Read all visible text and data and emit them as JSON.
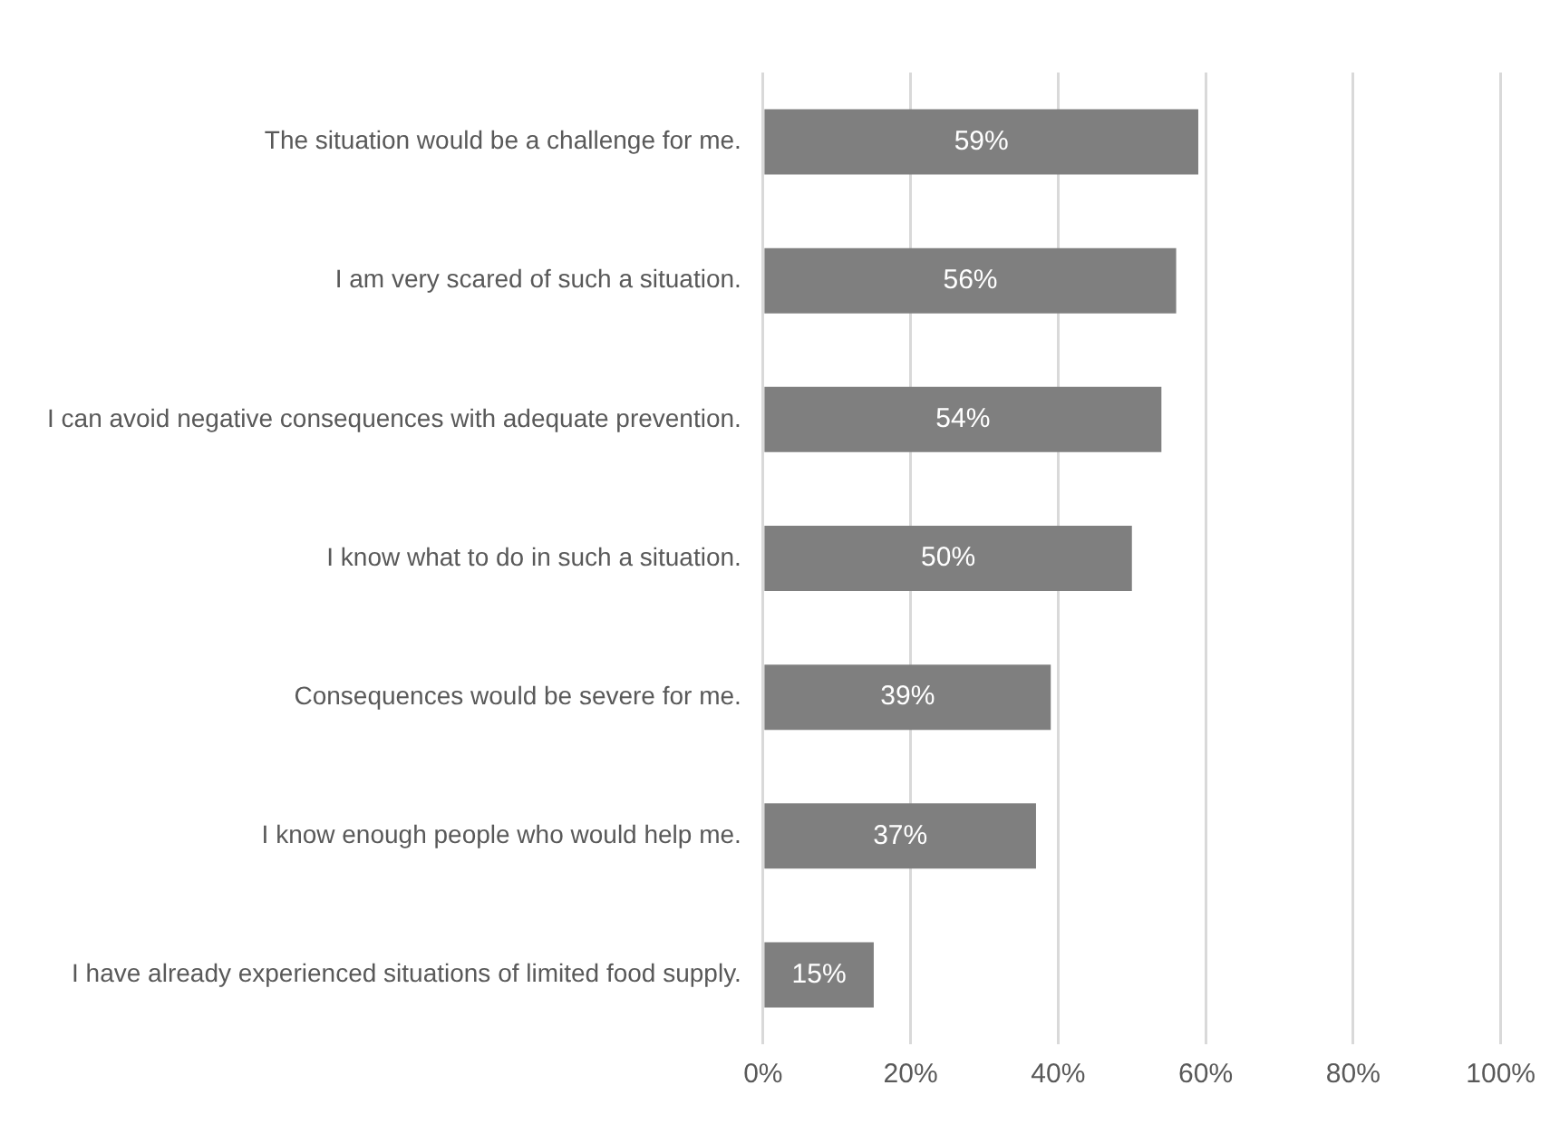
{
  "chart_data": {
    "type": "bar",
    "orientation": "horizontal",
    "categories": [
      "The situation would be a challenge for me.",
      "I am very scared of such a situation.",
      "I can avoid negative consequences with adequate prevention.",
      "I know what to do in such a situation.",
      "Consequences would be severe for me.",
      "I know enough people who would help me.",
      "I have already experienced situations of limited food supply."
    ],
    "values": [
      59,
      56,
      54,
      50,
      39,
      37,
      15
    ],
    "value_labels": [
      "59%",
      "56%",
      "54%",
      "50%",
      "39%",
      "37%",
      "15%"
    ],
    "color": "#7f7f7f",
    "xlim": [
      0,
      100
    ],
    "xticks": [
      {
        "value": 0,
        "label": "0%"
      },
      {
        "value": 20,
        "label": "20%"
      },
      {
        "value": 40,
        "label": "40%"
      },
      {
        "value": 60,
        "label": "60%"
      },
      {
        "value": 80,
        "label": "80%"
      },
      {
        "value": 100,
        "label": "100%"
      }
    ],
    "grid": "x",
    "legend": false
  }
}
